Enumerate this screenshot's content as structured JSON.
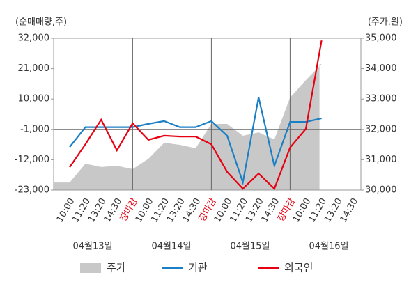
{
  "chart_data": {
    "type": "line",
    "y_axis_label": "(순매매량,주)",
    "y2_axis_label": "(주가,원)",
    "categories": [
      "10:00",
      "11:20",
      "13:20",
      "14:30",
      "장마감",
      "10:00",
      "11:20",
      "13:20",
      "14:30",
      "장마감",
      "10:00",
      "11:20",
      "13:20",
      "14:30",
      "장마감",
      "10:00",
      "11:20",
      "13:20",
      "14:30"
    ],
    "highlight_indices": [
      4,
      9,
      14
    ],
    "highlight_color": "#e60012",
    "day_labels": [
      "04월13일",
      "04월14일",
      "04월15일",
      "04월16일"
    ],
    "ylim": [
      -23000,
      32000
    ],
    "yticks": [
      {
        "value": -23000,
        "label": "-23,000"
      },
      {
        "value": -12000,
        "label": "-12,000"
      },
      {
        "value": -1000,
        "label": "-1,000"
      },
      {
        "value": 10000,
        "label": "10,000"
      },
      {
        "value": 21000,
        "label": "21,000"
      },
      {
        "value": 32000,
        "label": "32,000"
      }
    ],
    "y2lim": [
      30000,
      35000
    ],
    "y2ticks": [
      {
        "value": 30000,
        "label": "30,000"
      },
      {
        "value": 31000,
        "label": "31,000"
      },
      {
        "value": 32000,
        "label": "32,000"
      },
      {
        "value": 33000,
        "label": "33,000"
      },
      {
        "value": 34000,
        "label": "34,000"
      },
      {
        "value": 35000,
        "label": "35,000"
      }
    ],
    "reference_line": -1000,
    "series": [
      {
        "name": "주가",
        "kind": "area",
        "axis": "y2",
        "color": "#c8c8c8",
        "values": [
          30250,
          30870,
          30760,
          30800,
          30690,
          31030,
          31560,
          31490,
          31380,
          32180,
          32180,
          31790,
          31900,
          31670,
          33050,
          33620,
          34150,
          null,
          null
        ]
      },
      {
        "name": "기관",
        "kind": "line",
        "color": "#1a7fc4",
        "values": [
          -7400,
          -200,
          -200,
          -200,
          -200,
          1000,
          2000,
          -200,
          -200,
          2000,
          -3300,
          -20200,
          10600,
          -14200,
          1700,
          1700,
          3000,
          null,
          null
        ]
      },
      {
        "name": "외국인",
        "kind": "line",
        "color": "#e60012",
        "values": [
          -14700,
          -6400,
          2500,
          -8600,
          1200,
          -4800,
          -3300,
          -3600,
          -3600,
          -6400,
          -16400,
          -22500,
          -17000,
          -22500,
          -7600,
          -800,
          31200,
          null,
          null
        ]
      }
    ]
  }
}
